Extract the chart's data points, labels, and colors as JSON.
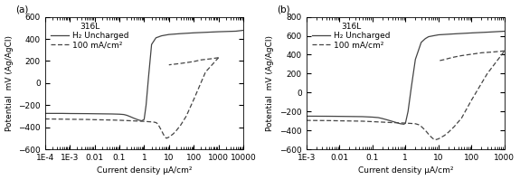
{
  "panel_a": {
    "label": "(a)",
    "title": "316L",
    "legend": [
      "H₂ Uncharged",
      "100 mA/cm²"
    ],
    "xlim": [
      0.0001,
      10000
    ],
    "ylim": [
      -600,
      600
    ],
    "yticks": [
      -600,
      -400,
      -200,
      0,
      200,
      400,
      600
    ],
    "xtick_labels": [
      "1E-4",
      "1E-3",
      "0.01",
      "0.1",
      "1",
      "10",
      "100",
      "1000",
      "10000"
    ],
    "xtick_vals": [
      0.0001,
      0.001,
      0.01,
      0.1,
      1,
      10,
      100,
      1000,
      10000
    ],
    "xlabel": "Current density μA/cm²",
    "ylabel": "Potential  mV (Ag/AgCl)",
    "uncharged_fwd": {
      "x": [
        0.0001,
        0.0005,
        0.001,
        0.005,
        0.01,
        0.05,
        0.1,
        0.15,
        0.2,
        0.28,
        0.4,
        0.6,
        0.8,
        1.0,
        1.2,
        1.5,
        2.0,
        3.0,
        4.0,
        5.0,
        7.0,
        10,
        30,
        100,
        500,
        1000,
        5000,
        10000
      ],
      "y": [
        -275,
        -275,
        -276,
        -277,
        -278,
        -280,
        -282,
        -285,
        -292,
        -305,
        -320,
        -335,
        -342,
        -330,
        -200,
        50,
        350,
        410,
        420,
        428,
        434,
        440,
        448,
        455,
        462,
        465,
        470,
        478
      ]
    },
    "charged_fwd": {
      "x": [
        0.0001,
        0.0005,
        0.001,
        0.005,
        0.01,
        0.05,
        0.1,
        0.2,
        0.4,
        0.6,
        0.8,
        1.0,
        1.2,
        1.5,
        2.0,
        2.5,
        3.0,
        3.5,
        4.0,
        5.0,
        6.0,
        7.0,
        8.0,
        10,
        15,
        20,
        30,
        50,
        100,
        300,
        1000
      ],
      "y": [
        -325,
        -327,
        -328,
        -330,
        -332,
        -335,
        -337,
        -340,
        -343,
        -345,
        -346,
        -347,
        -348,
        -350,
        -352,
        -354,
        -358,
        -368,
        -390,
        -430,
        -465,
        -490,
        -500,
        -490,
        -460,
        -430,
        -380,
        -300,
        -150,
        100,
        230
      ]
    },
    "charged_rev": {
      "x": [
        1000,
        500,
        200,
        100,
        50,
        30,
        20,
        15,
        10
      ],
      "y": [
        230,
        220,
        210,
        195,
        185,
        178,
        173,
        170,
        165
      ]
    }
  },
  "panel_b": {
    "label": "(b)",
    "title": "316L",
    "legend": [
      "H₂ Uncharged",
      "100 mA/cm²"
    ],
    "xlim": [
      0.001,
      1000
    ],
    "ylim": [
      -600,
      800
    ],
    "yticks": [
      -600,
      -400,
      -200,
      0,
      200,
      400,
      600,
      800
    ],
    "xtick_labels": [
      "1E-3",
      "0.01",
      "0.1",
      "1",
      "10",
      "100",
      "1000"
    ],
    "xtick_vals": [
      0.001,
      0.01,
      0.1,
      1,
      10,
      100,
      1000
    ],
    "xlabel": "Current density μA/cm²",
    "ylabel": "Potential  mV (Ag/AgCl)",
    "uncharged_fwd": {
      "x": [
        0.001,
        0.005,
        0.01,
        0.05,
        0.1,
        0.15,
        0.2,
        0.3,
        0.5,
        0.7,
        0.9,
        1.0,
        1.2,
        1.5,
        2.0,
        3.0,
        4.0,
        5.0,
        7.0,
        10,
        30,
        100,
        300,
        1000
      ],
      "y": [
        -250,
        -251,
        -252,
        -255,
        -260,
        -265,
        -275,
        -292,
        -315,
        -330,
        -335,
        -325,
        -200,
        50,
        350,
        530,
        570,
        590,
        600,
        610,
        620,
        630,
        638,
        648
      ]
    },
    "charged_fwd": {
      "x": [
        0.001,
        0.005,
        0.01,
        0.05,
        0.1,
        0.2,
        0.4,
        0.6,
        0.8,
        1.0,
        1.2,
        1.5,
        2.0,
        2.5,
        3.0,
        4.0,
        5.0,
        6.0,
        7.0,
        8.0,
        10,
        15,
        20,
        30,
        50,
        100,
        300,
        1000
      ],
      "y": [
        -295,
        -297,
        -299,
        -303,
        -308,
        -313,
        -318,
        -320,
        -322,
        -323,
        -325,
        -327,
        -330,
        -340,
        -358,
        -400,
        -440,
        -470,
        -490,
        -500,
        -490,
        -455,
        -420,
        -360,
        -270,
        -80,
        200,
        440
      ]
    },
    "charged_rev": {
      "x": [
        1000,
        500,
        200,
        100,
        50,
        30,
        20,
        15,
        10
      ],
      "y": [
        440,
        430,
        420,
        405,
        390,
        375,
        360,
        348,
        335
      ]
    }
  },
  "line_color": "#444444",
  "background_color": "#ffffff",
  "fontsize": 6.5,
  "title_fontsize": 6.5
}
